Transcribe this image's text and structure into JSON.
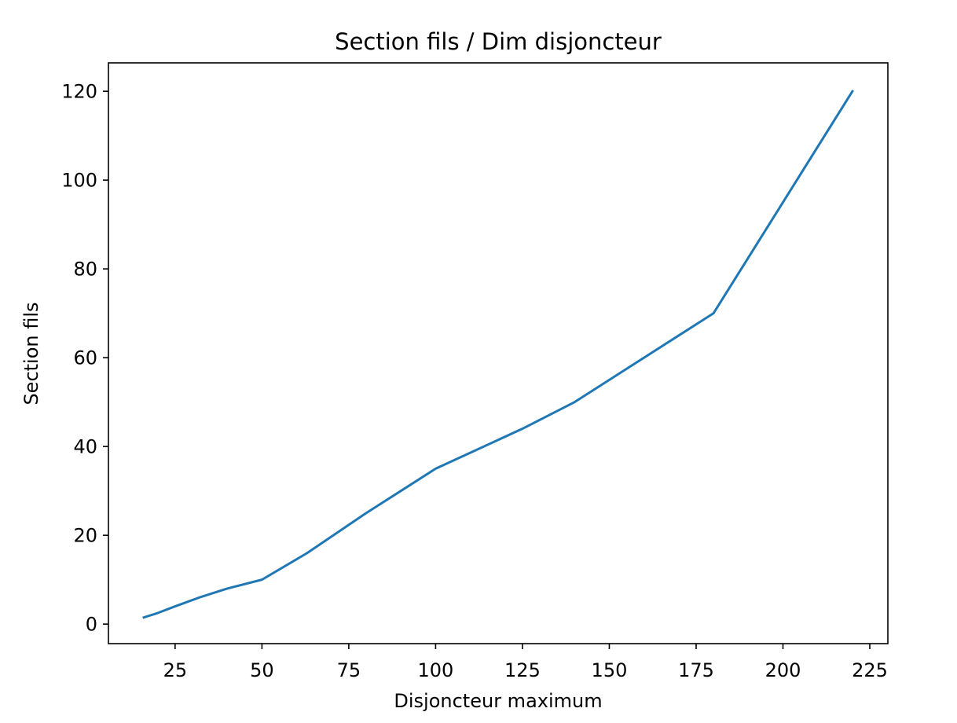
{
  "chart_data": {
    "type": "line",
    "title": "Section fils / Dim disjoncteur",
    "xlabel": "Disjoncteur maximum",
    "ylabel": "Section fils",
    "xlim": [
      5.8,
      230.2
    ],
    "ylim": [
      -4.4,
      126.4
    ],
    "xticks": [
      25,
      50,
      75,
      100,
      125,
      150,
      175,
      200,
      225
    ],
    "yticks": [
      0,
      20,
      40,
      60,
      80,
      100,
      120
    ],
    "grid": false,
    "series": [
      {
        "name": "Section fils",
        "color": "#1f77b4",
        "x": [
          16,
          20,
          25,
          32,
          40,
          50,
          63,
          80,
          100,
          125,
          140,
          160,
          180,
          200,
          220
        ],
        "y": [
          1.5,
          2.5,
          4,
          6,
          8,
          10,
          16,
          25,
          35,
          44,
          50,
          60,
          70,
          95,
          120
        ]
      }
    ]
  }
}
